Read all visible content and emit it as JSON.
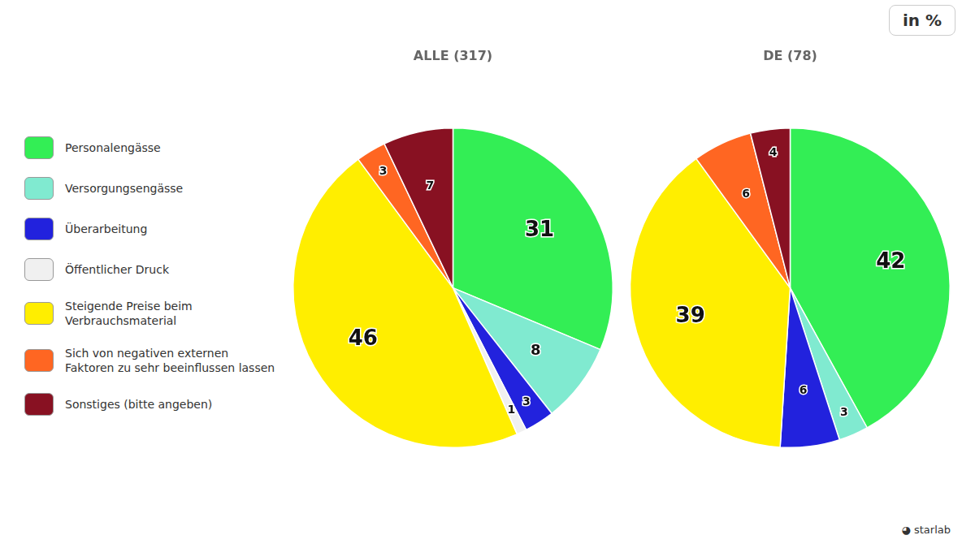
{
  "chart_data": [
    {
      "type": "pie",
      "title": "ALLE (317)",
      "categories": [
        "Personalengässe",
        "Versorgungsengässe",
        "Überarbeitung",
        "Öffentlicher Druck",
        "Steigende Preise beim\nVerbrauchsmaterial",
        "Sich von negativen externen\nFaktoren zu sehr beeinflussen lassen",
        "Sonstiges (bitte angeben)"
      ],
      "values": [
        31,
        8,
        3,
        1,
        46,
        3,
        7
      ],
      "colors": [
        "#33ee55",
        "#80ead0",
        "#2222dd",
        "#f0f0f0",
        "#ffee00",
        "#ff6622",
        "#881122"
      ],
      "data_labels": true,
      "legend": "left",
      "annotations": [
        "in %",
        "◕ starlab"
      ]
    },
    {
      "type": "pie",
      "title": "DE (78)",
      "categories": [
        "Personalengässe",
        "Versorgungsengässe",
        "Überarbeitung",
        "Öffentlicher Druck",
        "Steigende Preise beim\nVerbrauchsmaterial",
        "Sich von negativen externen\nFaktoren zu sehr beeinflussen lassen",
        "Sonstiges (bitte angeben)"
      ],
      "values": [
        42,
        3,
        6,
        0,
        39,
        6,
        4
      ],
      "colors": [
        "#33ee55",
        "#80ead0",
        "#2222dd",
        "#f0f0f0",
        "#ffee00",
        "#ff6622",
        "#881122"
      ],
      "data_labels": true
    }
  ]
}
